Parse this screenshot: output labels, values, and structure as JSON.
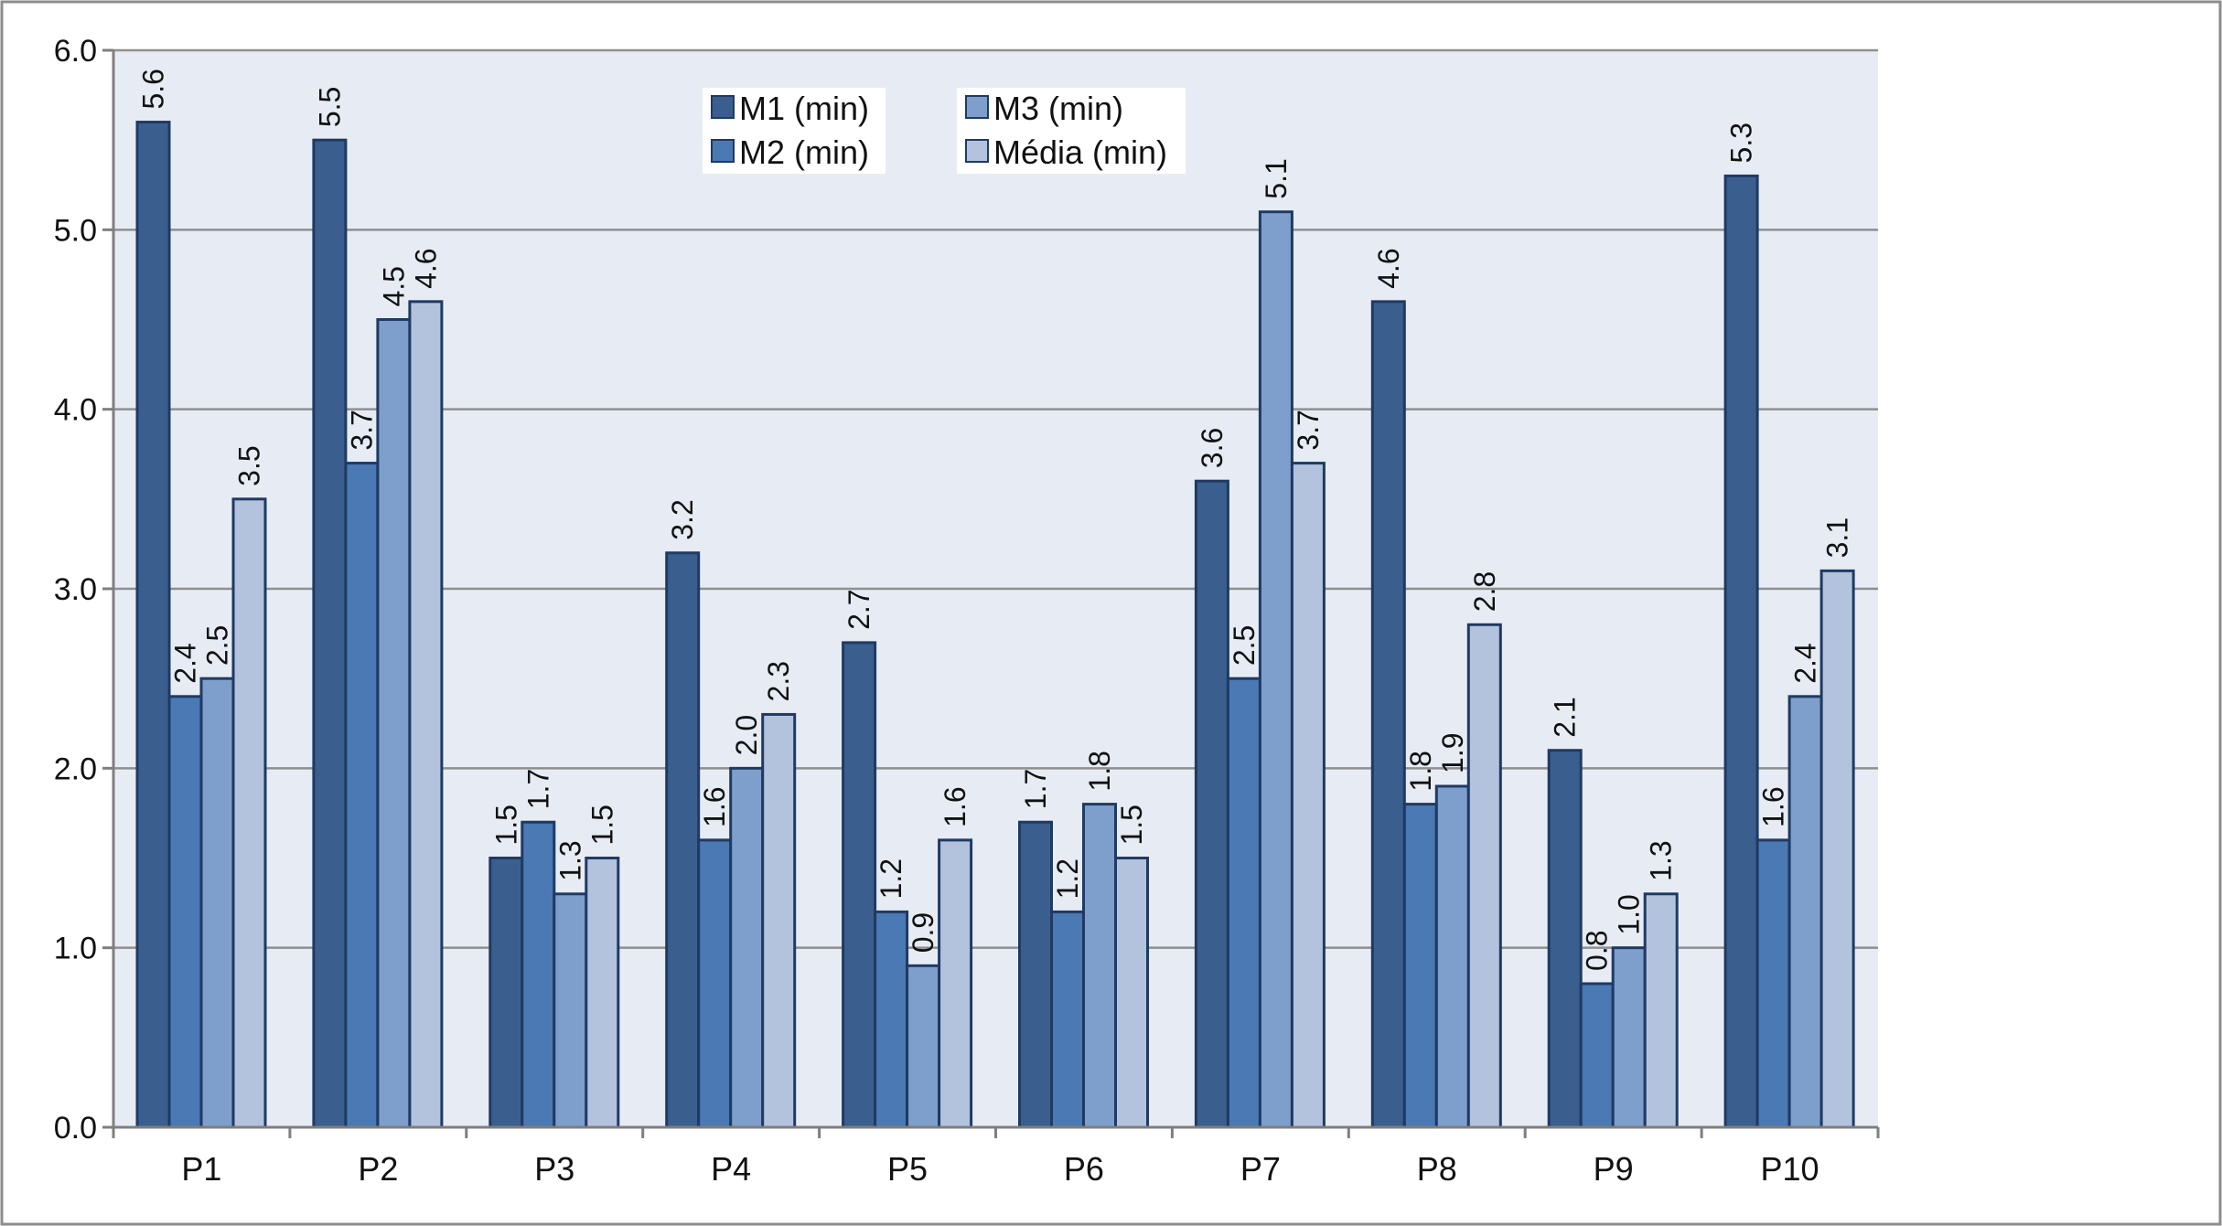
{
  "chart_data": {
    "type": "bar",
    "title": "",
    "xlabel": "",
    "ylabel": "",
    "categories": [
      "P1",
      "P2",
      "P3",
      "P4",
      "P5",
      "P6",
      "P7",
      "P8",
      "P9",
      "P10"
    ],
    "ylim": [
      0,
      6
    ],
    "yticks": [
      "0.0",
      "1.0",
      "2.0",
      "3.0",
      "4.0",
      "5.0",
      "6.0"
    ],
    "grid": true,
    "legend_position": "top-center",
    "series": [
      {
        "name": "M1 (min)",
        "color": "#3a5f8f",
        "values": [
          5.6,
          5.5,
          1.5,
          3.2,
          2.7,
          1.7,
          3.6,
          4.6,
          2.1,
          5.3
        ]
      },
      {
        "name": "M2 (min)",
        "color": "#4a79b4",
        "values": [
          2.4,
          3.7,
          1.7,
          1.6,
          1.2,
          1.2,
          2.5,
          1.8,
          0.8,
          1.6
        ]
      },
      {
        "name": "M3 (min)",
        "color": "#7e9fcc",
        "values": [
          2.5,
          4.5,
          1.3,
          2.0,
          0.9,
          1.8,
          5.1,
          1.9,
          1.0,
          2.4
        ]
      },
      {
        "name": "Média (min)",
        "color": "#b3c3de",
        "values": [
          3.5,
          4.6,
          1.5,
          2.3,
          1.6,
          1.5,
          3.7,
          2.8,
          1.3,
          3.1
        ]
      }
    ]
  }
}
